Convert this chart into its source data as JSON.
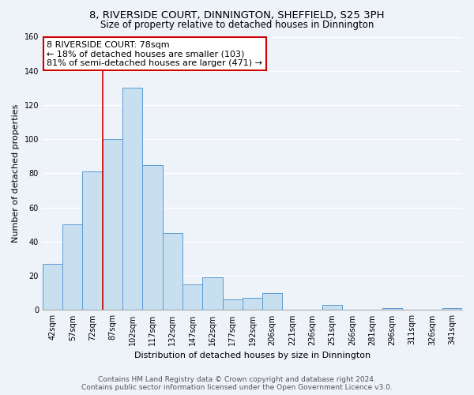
{
  "title": "8, RIVERSIDE COURT, DINNINGTON, SHEFFIELD, S25 3PH",
  "subtitle": "Size of property relative to detached houses in Dinnington",
  "xlabel": "Distribution of detached houses by size in Dinnington",
  "ylabel": "Number of detached properties",
  "bin_labels": [
    "42sqm",
    "57sqm",
    "72sqm",
    "87sqm",
    "102sqm",
    "117sqm",
    "132sqm",
    "147sqm",
    "162sqm",
    "177sqm",
    "192sqm",
    "206sqm",
    "221sqm",
    "236sqm",
    "251sqm",
    "266sqm",
    "281sqm",
    "296sqm",
    "311sqm",
    "326sqm",
    "341sqm"
  ],
  "bar_heights": [
    27,
    50,
    81,
    100,
    130,
    85,
    45,
    15,
    19,
    6,
    7,
    10,
    0,
    0,
    3,
    0,
    0,
    1,
    0,
    0,
    1
  ],
  "bar_color": "#c8dff0",
  "bar_edge_color": "#5b9bd5",
  "highlight_line_color": "#cc0000",
  "annotation_title": "8 RIVERSIDE COURT: 78sqm",
  "annotation_line1": "← 18% of detached houses are smaller (103)",
  "annotation_line2": "81% of semi-detached houses are larger (471) →",
  "annotation_box_color": "#ffffff",
  "annotation_box_edge_color": "#cc0000",
  "ylim": [
    0,
    160
  ],
  "yticks": [
    0,
    20,
    40,
    60,
    80,
    100,
    120,
    140,
    160
  ],
  "footer_line1": "Contains HM Land Registry data © Crown copyright and database right 2024.",
  "footer_line2": "Contains public sector information licensed under the Open Government Licence v3.0.",
  "bg_color": "#eef2f9",
  "grid_color": "#ffffff",
  "title_fontsize": 9.5,
  "subtitle_fontsize": 8.5,
  "axis_label_fontsize": 8,
  "tick_fontsize": 7,
  "annotation_fontsize": 8,
  "footer_fontsize": 6.5
}
